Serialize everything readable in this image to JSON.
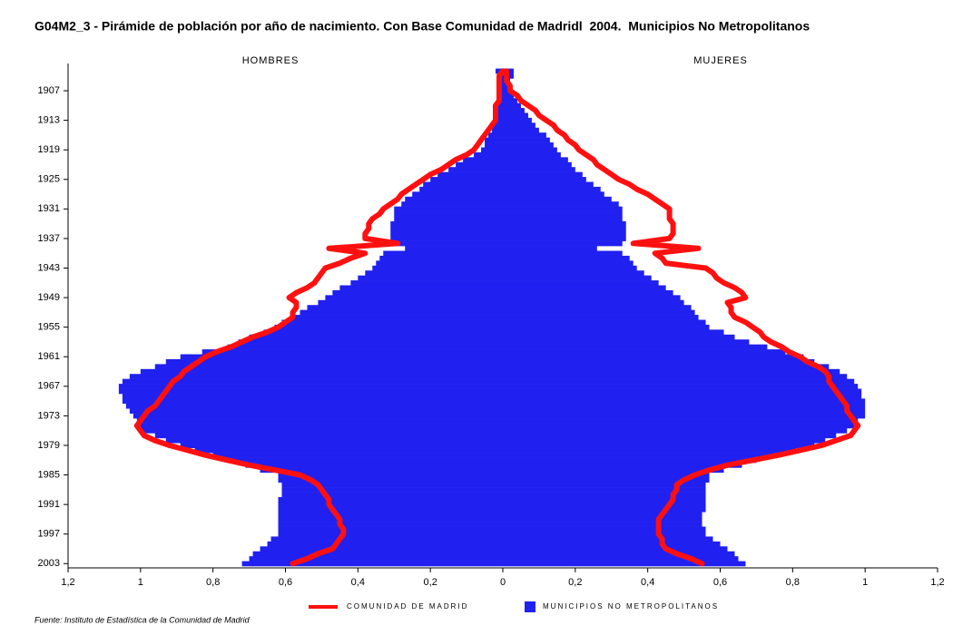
{
  "chart_data": {
    "type": "pyramid",
    "title": "G04M2_3 - Pirámide de población por año de nacimiento. Con Base Comunidad de Madridl  2004.  Municipios No Metropolitanos",
    "sides": [
      "HOMBRES",
      "MUJERES"
    ],
    "source": "Fuente: Instituto de Estadística de la Comunidad de Madrid",
    "categories": [
      null,
      null,
      null,
      null,
      "1907",
      null,
      null,
      null,
      null,
      null,
      "1913",
      null,
      null,
      null,
      null,
      null,
      "1919",
      null,
      null,
      null,
      null,
      null,
      "1925",
      null,
      null,
      null,
      null,
      null,
      "1931",
      null,
      null,
      null,
      null,
      null,
      "1937",
      null,
      null,
      null,
      null,
      null,
      "1943",
      null,
      null,
      null,
      null,
      null,
      "1949",
      null,
      null,
      null,
      null,
      null,
      "1955",
      null,
      null,
      null,
      null,
      null,
      "1961",
      null,
      null,
      null,
      null,
      null,
      "1967",
      null,
      null,
      null,
      null,
      null,
      "1973",
      null,
      null,
      null,
      null,
      null,
      "1979",
      null,
      null,
      null,
      null,
      null,
      "1985",
      null,
      null,
      null,
      null,
      null,
      "1991",
      null,
      null,
      null,
      null,
      null,
      "1997",
      null,
      null,
      null,
      null,
      null,
      "2003"
    ],
    "xlim": [
      -1.2,
      1.2
    ],
    "xticks": [
      {
        "value": -1.2,
        "label": "1,2"
      },
      {
        "value": -1,
        "label": "1"
      },
      {
        "value": -0.8,
        "label": "0,8"
      },
      {
        "value": -0.6,
        "label": "0,6"
      },
      {
        "value": -0.4,
        "label": "0,4"
      },
      {
        "value": -0.2,
        "label": "0,2"
      },
      0,
      {
        "value": 0.2,
        "label": "0,2"
      },
      {
        "value": 0.4,
        "label": "0,4"
      },
      {
        "value": 0.6,
        "label": "0,6"
      },
      {
        "value": 0.8,
        "label": "0,8"
      },
      1,
      {
        "value": 1.2,
        "label": "1,2"
      }
    ],
    "series": [
      {
        "name": "MUNICIPIOS NO METROPOLITANOS",
        "color": "#2020f0",
        "mark": "bar",
        "values": [
          [
            0.02,
            0.01,
            0.01,
            0.01,
            0.01,
            0.01,
            0.01,
            0.02,
            0.02,
            0.02,
            0.02,
            0.03,
            0.03,
            0.04,
            0.05,
            0.05,
            0.06,
            0.08,
            0.11,
            0.13,
            0.15,
            0.18,
            0.2,
            0.22,
            0.23,
            0.25,
            0.27,
            0.28,
            0.3,
            0.3,
            0.3,
            0.31,
            0.31,
            0.31,
            0.31,
            0.3,
            0.27,
            0.33,
            0.34,
            0.35,
            0.36,
            0.38,
            0.4,
            0.42,
            0.45,
            0.47,
            0.49,
            0.51,
            0.54,
            0.56,
            0.58,
            0.61,
            0.63,
            0.66,
            0.7,
            0.73,
            0.76,
            0.83,
            0.89,
            0.93,
            0.96,
            1.0,
            1.03,
            1.05,
            1.06,
            1.06,
            1.05,
            1.05,
            1.04,
            1.03,
            1.02,
            1.01,
            1.01,
            1.0,
            0.96,
            0.93,
            0.89,
            0.85,
            0.8,
            0.76,
            0.71,
            0.67,
            0.62,
            0.62,
            0.61,
            0.61,
            0.61,
            0.62,
            0.62,
            0.62,
            0.62,
            0.62,
            0.62,
            0.62,
            0.62,
            0.64,
            0.65,
            0.67,
            0.69,
            0.7,
            0.72
          ],
          [
            0.03,
            0.03,
            0.02,
            0.02,
            0.02,
            0.03,
            0.04,
            0.05,
            0.06,
            0.07,
            0.08,
            0.09,
            0.1,
            0.12,
            0.13,
            0.14,
            0.15,
            0.16,
            0.18,
            0.19,
            0.2,
            0.22,
            0.23,
            0.25,
            0.27,
            0.28,
            0.3,
            0.32,
            0.33,
            0.33,
            0.33,
            0.34,
            0.34,
            0.34,
            0.34,
            0.33,
            0.26,
            0.33,
            0.35,
            0.36,
            0.37,
            0.39,
            0.41,
            0.43,
            0.45,
            0.47,
            0.49,
            0.5,
            0.52,
            0.53,
            0.54,
            0.56,
            0.57,
            0.61,
            0.64,
            0.68,
            0.73,
            0.78,
            0.83,
            0.86,
            0.9,
            0.93,
            0.95,
            0.97,
            0.98,
            0.99,
            0.99,
            1.0,
            1.0,
            1.0,
            1.0,
            0.98,
            0.97,
            0.95,
            0.92,
            0.89,
            0.86,
            0.81,
            0.75,
            0.7,
            0.66,
            0.61,
            0.57,
            0.57,
            0.56,
            0.56,
            0.56,
            0.56,
            0.56,
            0.56,
            0.55,
            0.55,
            0.55,
            0.56,
            0.56,
            0.58,
            0.6,
            0.62,
            0.64,
            0.65,
            0.67
          ]
        ]
      },
      {
        "name": "COMUNIDAD DE MADRID",
        "color": "#ff1010",
        "mark": "line",
        "values": [
          [
            0.0,
            0.01,
            0.01,
            0.01,
            0.01,
            0.01,
            0.01,
            0.02,
            0.02,
            0.02,
            0.02,
            0.03,
            0.04,
            0.05,
            0.06,
            0.07,
            0.08,
            0.1,
            0.13,
            0.15,
            0.17,
            0.2,
            0.22,
            0.24,
            0.26,
            0.28,
            0.29,
            0.31,
            0.33,
            0.34,
            0.36,
            0.37,
            0.37,
            0.38,
            0.38,
            0.29,
            0.48,
            0.38,
            0.42,
            0.45,
            0.49,
            0.5,
            0.51,
            0.52,
            0.54,
            0.57,
            0.59,
            0.57,
            0.57,
            0.58,
            0.58,
            0.6,
            0.62,
            0.65,
            0.69,
            0.72,
            0.75,
            0.79,
            0.82,
            0.84,
            0.86,
            0.88,
            0.89,
            0.91,
            0.92,
            0.93,
            0.94,
            0.95,
            0.96,
            0.98,
            0.99,
            1.0,
            1.01,
            1.0,
            0.99,
            0.96,
            0.92,
            0.87,
            0.82,
            0.76,
            0.7,
            0.63,
            0.56,
            0.53,
            0.51,
            0.5,
            0.49,
            0.48,
            0.48,
            0.47,
            0.46,
            0.45,
            0.45,
            0.44,
            0.44,
            0.45,
            0.46,
            0.47,
            0.51,
            0.54,
            0.58
          ],
          [
            0.01,
            0.01,
            0.01,
            0.02,
            0.02,
            0.04,
            0.05,
            0.07,
            0.09,
            0.1,
            0.12,
            0.14,
            0.15,
            0.17,
            0.18,
            0.2,
            0.21,
            0.23,
            0.25,
            0.26,
            0.28,
            0.3,
            0.32,
            0.35,
            0.37,
            0.4,
            0.42,
            0.44,
            0.46,
            0.46,
            0.46,
            0.47,
            0.47,
            0.47,
            0.46,
            0.36,
            0.54,
            0.42,
            0.44,
            0.45,
            0.56,
            0.58,
            0.59,
            0.61,
            0.64,
            0.66,
            0.67,
            0.62,
            0.63,
            0.63,
            0.64,
            0.67,
            0.69,
            0.71,
            0.72,
            0.74,
            0.77,
            0.79,
            0.82,
            0.84,
            0.87,
            0.89,
            0.9,
            0.9,
            0.91,
            0.92,
            0.93,
            0.94,
            0.95,
            0.95,
            0.96,
            0.97,
            0.98,
            0.97,
            0.96,
            0.92,
            0.88,
            0.82,
            0.76,
            0.69,
            0.62,
            0.57,
            0.53,
            0.5,
            0.48,
            0.48,
            0.47,
            0.47,
            0.46,
            0.45,
            0.44,
            0.43,
            0.43,
            0.43,
            0.43,
            0.44,
            0.44,
            0.45,
            0.48,
            0.52,
            0.55
          ]
        ]
      }
    ]
  }
}
